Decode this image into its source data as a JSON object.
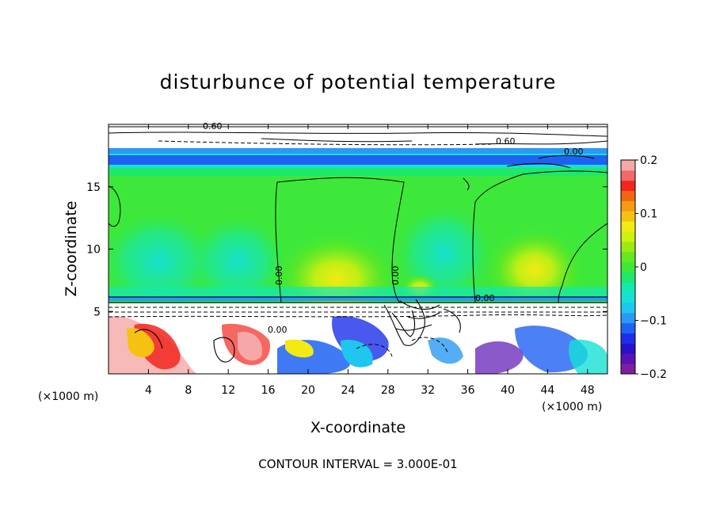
{
  "chart_data": {
    "type": "heatmap",
    "title": "disturbunce of potential temperature",
    "xlabel": "X-coordinate",
    "ylabel": "Z-coordinate",
    "x_unit": "(×1000 m)",
    "y_unit": "(×1000 m)",
    "xlim": [
      0,
      50
    ],
    "ylim": [
      0,
      20
    ],
    "x_ticks": [
      4,
      8,
      12,
      16,
      20,
      24,
      28,
      32,
      36,
      40,
      44,
      48
    ],
    "y_ticks": [
      5,
      10,
      15
    ],
    "colorbar": {
      "vmin": -0.2,
      "vmax": 0.2,
      "ticks": [
        "0.2",
        "0.1",
        "0",
        "−0.1",
        "−0.2"
      ],
      "levels": [
        {
          "value": -0.2,
          "color": "#7f1fa0"
        },
        {
          "value": -0.18,
          "color": "#5a12b4"
        },
        {
          "value": -0.16,
          "color": "#2a10c8"
        },
        {
          "value": -0.14,
          "color": "#1c2ee8"
        },
        {
          "value": -0.12,
          "color": "#1f62f2"
        },
        {
          "value": -0.1,
          "color": "#2a9af2"
        },
        {
          "value": -0.08,
          "color": "#1fc6f0"
        },
        {
          "value": -0.06,
          "color": "#15e0d6"
        },
        {
          "value": -0.04,
          "color": "#15e8b0"
        },
        {
          "value": -0.02,
          "color": "#1fe86a"
        },
        {
          "value": 0.0,
          "color": "#3ee83a"
        },
        {
          "value": 0.02,
          "color": "#66e81f"
        },
        {
          "value": 0.04,
          "color": "#9aeb12"
        },
        {
          "value": 0.06,
          "color": "#cdf012"
        },
        {
          "value": 0.08,
          "color": "#f2ea12"
        },
        {
          "value": 0.1,
          "color": "#f6c212"
        },
        {
          "value": 0.12,
          "color": "#f69a12"
        },
        {
          "value": 0.14,
          "color": "#f26612"
        },
        {
          "value": 0.16,
          "color": "#f2261f"
        },
        {
          "value": 0.18,
          "color": "#f06a6a"
        },
        {
          "value": 0.2,
          "color": "#f6a8a8"
        }
      ]
    },
    "contour_labels": [
      "0.60",
      "0.60",
      "0.00",
      "0.00",
      "0.00",
      "0.00",
      "0.00"
    ],
    "annotation": "CONTOUR INTERVAL = 3.000E-01"
  }
}
